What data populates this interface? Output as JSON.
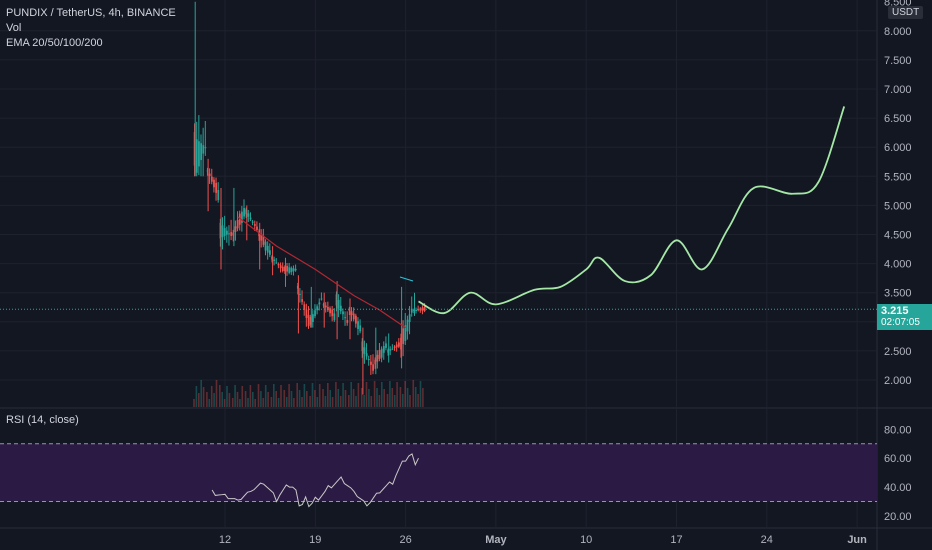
{
  "legend": {
    "symbol_line": "PUNDIX / TetherUS, 4h, BINANCE",
    "vol_label": "Vol",
    "ema_label": "EMA 20/50/100/200"
  },
  "rsi_legend": "RSI (14, close)",
  "axis_unit": "USDT",
  "last_price": {
    "price": "3.215",
    "countdown": "02:07:05"
  },
  "colors": {
    "background": "#131722",
    "up": "#26a69a",
    "down": "#ef5350",
    "ema": "#b22833",
    "projection": "#a5e8a6",
    "rsi_band": "#2b1b44",
    "rsi_line": "#c8c8c8",
    "grid": "#1e222d"
  },
  "chart_data": [
    {
      "type": "candlestick",
      "title": "PUNDIX / TetherUS, 4h, BINANCE",
      "y_tick_labels": [
        "2.000",
        "2.500",
        "3.000",
        "3.500",
        "4.000",
        "4.500",
        "5.000",
        "5.500",
        "6.000",
        "6.500",
        "7.000",
        "7.500",
        "8.000",
        "8.500"
      ],
      "x_tick_labels": [
        "12",
        "19",
        "26",
        "May",
        "10",
        "17",
        "24",
        "Jun"
      ],
      "ylim": [
        1.6,
        8.5
      ],
      "last_price": 3.215,
      "candles_approx": [
        {
          "x": "Apr 10",
          "o": 5.9,
          "h": 8.5,
          "l": 5.5,
          "c": 6.0
        },
        {
          "x": "Apr 11",
          "o": 5.6,
          "h": 5.8,
          "l": 4.9,
          "c": 5.2
        },
        {
          "x": "Apr 12",
          "o": 4.6,
          "h": 5.3,
          "l": 3.9,
          "c": 4.5
        },
        {
          "x": "Apr 13",
          "o": 4.5,
          "h": 5.3,
          "l": 4.3,
          "c": 4.9
        },
        {
          "x": "Apr 14",
          "o": 4.9,
          "h": 5.0,
          "l": 4.4,
          "c": 4.6
        },
        {
          "x": "Apr 15",
          "o": 4.5,
          "h": 4.7,
          "l": 3.9,
          "c": 4.2
        },
        {
          "x": "Apr 16",
          "o": 4.1,
          "h": 4.3,
          "l": 3.8,
          "c": 3.9
        },
        {
          "x": "Apr 17",
          "o": 3.9,
          "h": 4.1,
          "l": 3.6,
          "c": 3.9
        },
        {
          "x": "Apr 18",
          "o": 3.6,
          "h": 3.8,
          "l": 2.8,
          "c": 3.0
        },
        {
          "x": "Apr 19",
          "o": 3.0,
          "h": 3.6,
          "l": 2.9,
          "c": 3.4
        },
        {
          "x": "Apr 20",
          "o": 3.3,
          "h": 3.5,
          "l": 2.9,
          "c": 3.1
        },
        {
          "x": "Apr 21",
          "o": 3.4,
          "h": 3.7,
          "l": 2.7,
          "c": 3.0
        },
        {
          "x": "Apr 22",
          "o": 3.2,
          "h": 3.4,
          "l": 2.7,
          "c": 2.9
        },
        {
          "x": "Apr 23",
          "o": 2.6,
          "h": 2.9,
          "l": 1.75,
          "c": 2.2
        },
        {
          "x": "Apr 24",
          "o": 2.3,
          "h": 2.9,
          "l": 2.1,
          "c": 2.6
        },
        {
          "x": "Apr 25",
          "o": 2.5,
          "h": 2.8,
          "l": 2.3,
          "c": 2.6
        },
        {
          "x": "Apr 26",
          "o": 2.6,
          "h": 3.6,
          "l": 2.2,
          "c": 3.2
        },
        {
          "x": "Apr 27",
          "o": 3.2,
          "h": 3.5,
          "l": 3.1,
          "c": 3.215
        }
      ],
      "ema_approx": [
        {
          "x": "Apr 13",
          "y": 4.8
        },
        {
          "x": "Apr 16",
          "y": 4.3
        },
        {
          "x": "Apr 19",
          "y": 3.9
        },
        {
          "x": "Apr 22",
          "y": 3.45
        },
        {
          "x": "Apr 24",
          "y": 3.2
        },
        {
          "x": "Apr 26",
          "y": 2.9
        }
      ],
      "projection_approx": [
        {
          "x": "Apr 27",
          "y": 3.35
        },
        {
          "x": "Apr 29",
          "y": 3.15
        },
        {
          "x": "May 1",
          "y": 3.5
        },
        {
          "x": "May 3",
          "y": 3.3
        },
        {
          "x": "May 6",
          "y": 3.55
        },
        {
          "x": "May 8",
          "y": 3.6
        },
        {
          "x": "May 10",
          "y": 3.9
        },
        {
          "x": "May 11",
          "y": 4.1
        },
        {
          "x": "May 13",
          "y": 3.7
        },
        {
          "x": "May 15",
          "y": 3.8
        },
        {
          "x": "May 17",
          "y": 4.4
        },
        {
          "x": "May 19",
          "y": 3.9
        },
        {
          "x": "May 21",
          "y": 4.6
        },
        {
          "x": "May 23",
          "y": 5.3
        },
        {
          "x": "May 26",
          "y": 5.2
        },
        {
          "x": "May 28",
          "y": 5.4
        },
        {
          "x": "May 30",
          "y": 6.7
        }
      ]
    },
    {
      "type": "line",
      "title": "RSI (14, close)",
      "y_tick_labels": [
        "20.00",
        "40.00",
        "60.00",
        "80.00"
      ],
      "ylim": [
        15,
        88
      ],
      "bands": [
        30,
        70
      ],
      "values_approx": [
        {
          "x": "Apr 11",
          "y": 38
        },
        {
          "x": "Apr 12",
          "y": 35
        },
        {
          "x": "Apr 13",
          "y": 31
        },
        {
          "x": "Apr 14",
          "y": 37
        },
        {
          "x": "Apr 15",
          "y": 42
        },
        {
          "x": "Apr 16",
          "y": 30
        },
        {
          "x": "Apr 17",
          "y": 40
        },
        {
          "x": "Apr 18",
          "y": 28
        },
        {
          "x": "Apr 19",
          "y": 33
        },
        {
          "x": "Apr 20",
          "y": 41
        },
        {
          "x": "Apr 21",
          "y": 47
        },
        {
          "x": "Apr 22",
          "y": 37
        },
        {
          "x": "Apr 23",
          "y": 27
        },
        {
          "x": "Apr 24",
          "y": 36
        },
        {
          "x": "Apr 25",
          "y": 42
        },
        {
          "x": "Apr 26",
          "y": 58
        },
        {
          "x": "Apr 27",
          "y": 60
        }
      ]
    }
  ]
}
